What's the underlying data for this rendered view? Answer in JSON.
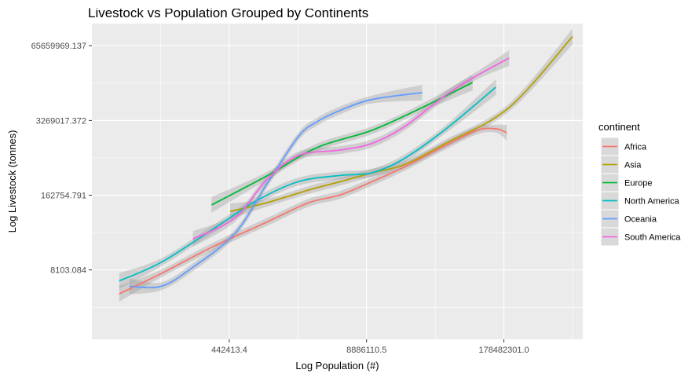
{
  "chart_data": {
    "type": "line",
    "title": "Livestock vs Population Grouped by Continents",
    "xlabel": "Log Population (#)",
    "ylabel": "Log Livestock (tonnes)",
    "x_scale": "log",
    "y_scale": "log",
    "xlim": [
      22000,
      1000000000
    ],
    "ylim": [
      500,
      160000000
    ],
    "x_ticks": [
      442413.4,
      8886110.5,
      178482301.0
    ],
    "x_tick_labels": [
      "442413.4",
      "8886110.5",
      "178482301.0"
    ],
    "y_ticks": [
      8103.084,
      162754.791,
      3269017.372,
      65659969.137
    ],
    "y_tick_labels": [
      "8103.084",
      "162754.791",
      "3269017.372",
      "65659969.137"
    ],
    "grid": true,
    "panel_background": "#ebebeb",
    "legend": {
      "title": "continent",
      "position": "right"
    },
    "series": [
      {
        "name": "Africa",
        "color": "#F8766D",
        "x": [
          40000,
          100000,
          300000,
          1000000,
          2500000,
          5000000,
          10000000,
          20000000,
          50000000,
          100000000,
          150000000,
          190000000
        ],
        "y": [
          3100,
          7000,
          20000,
          55000,
          120000,
          165000,
          280000,
          500000,
          1200000,
          2200000,
          2350000,
          2000000
        ]
      },
      {
        "name": "Asia",
        "color": "#B79F00",
        "x": [
          450000,
          1000000,
          2500000,
          5000000,
          10000000,
          20000000,
          50000000,
          200000000,
          800000000
        ],
        "y": [
          85000,
          120000,
          200000,
          280000,
          400000,
          550000,
          1300000,
          5500000,
          95000000
        ]
      },
      {
        "name": "Europe",
        "color": "#00BA38",
        "x": [
          300000,
          1000000,
          3000000,
          10000000,
          30000000,
          90000000
        ],
        "y": [
          110000,
          350000,
          1100000,
          2200000,
          5500000,
          15000000
        ]
      },
      {
        "name": "North America",
        "color": "#00BFC4",
        "x": [
          40000,
          100000,
          300000,
          800000,
          2000000,
          5000000,
          10000000,
          20000000,
          50000000,
          150000000
        ],
        "y": [
          5200,
          11000,
          40000,
          130000,
          280000,
          360000,
          400000,
          700000,
          2300000,
          12500000
        ]
      },
      {
        "name": "Oceania",
        "color": "#619CFF",
        "x": [
          50000,
          100000,
          200000,
          500000,
          1000000,
          2000000,
          3000000,
          5000000,
          10000000,
          30000000
        ],
        "y": [
          4200,
          4200,
          9000,
          35000,
          250000,
          1700000,
          3100000,
          4900000,
          7600000,
          10000000
        ]
      },
      {
        "name": "South America",
        "color": "#F564E3",
        "x": [
          200000,
          500000,
          1000000,
          2000000,
          5000000,
          10000000,
          20000000,
          50000000,
          100000000,
          200000000
        ],
        "y": [
          28000,
          65000,
          300000,
          800000,
          1000000,
          1300000,
          2500000,
          9000000,
          20000000,
          40000000
        ]
      }
    ]
  }
}
